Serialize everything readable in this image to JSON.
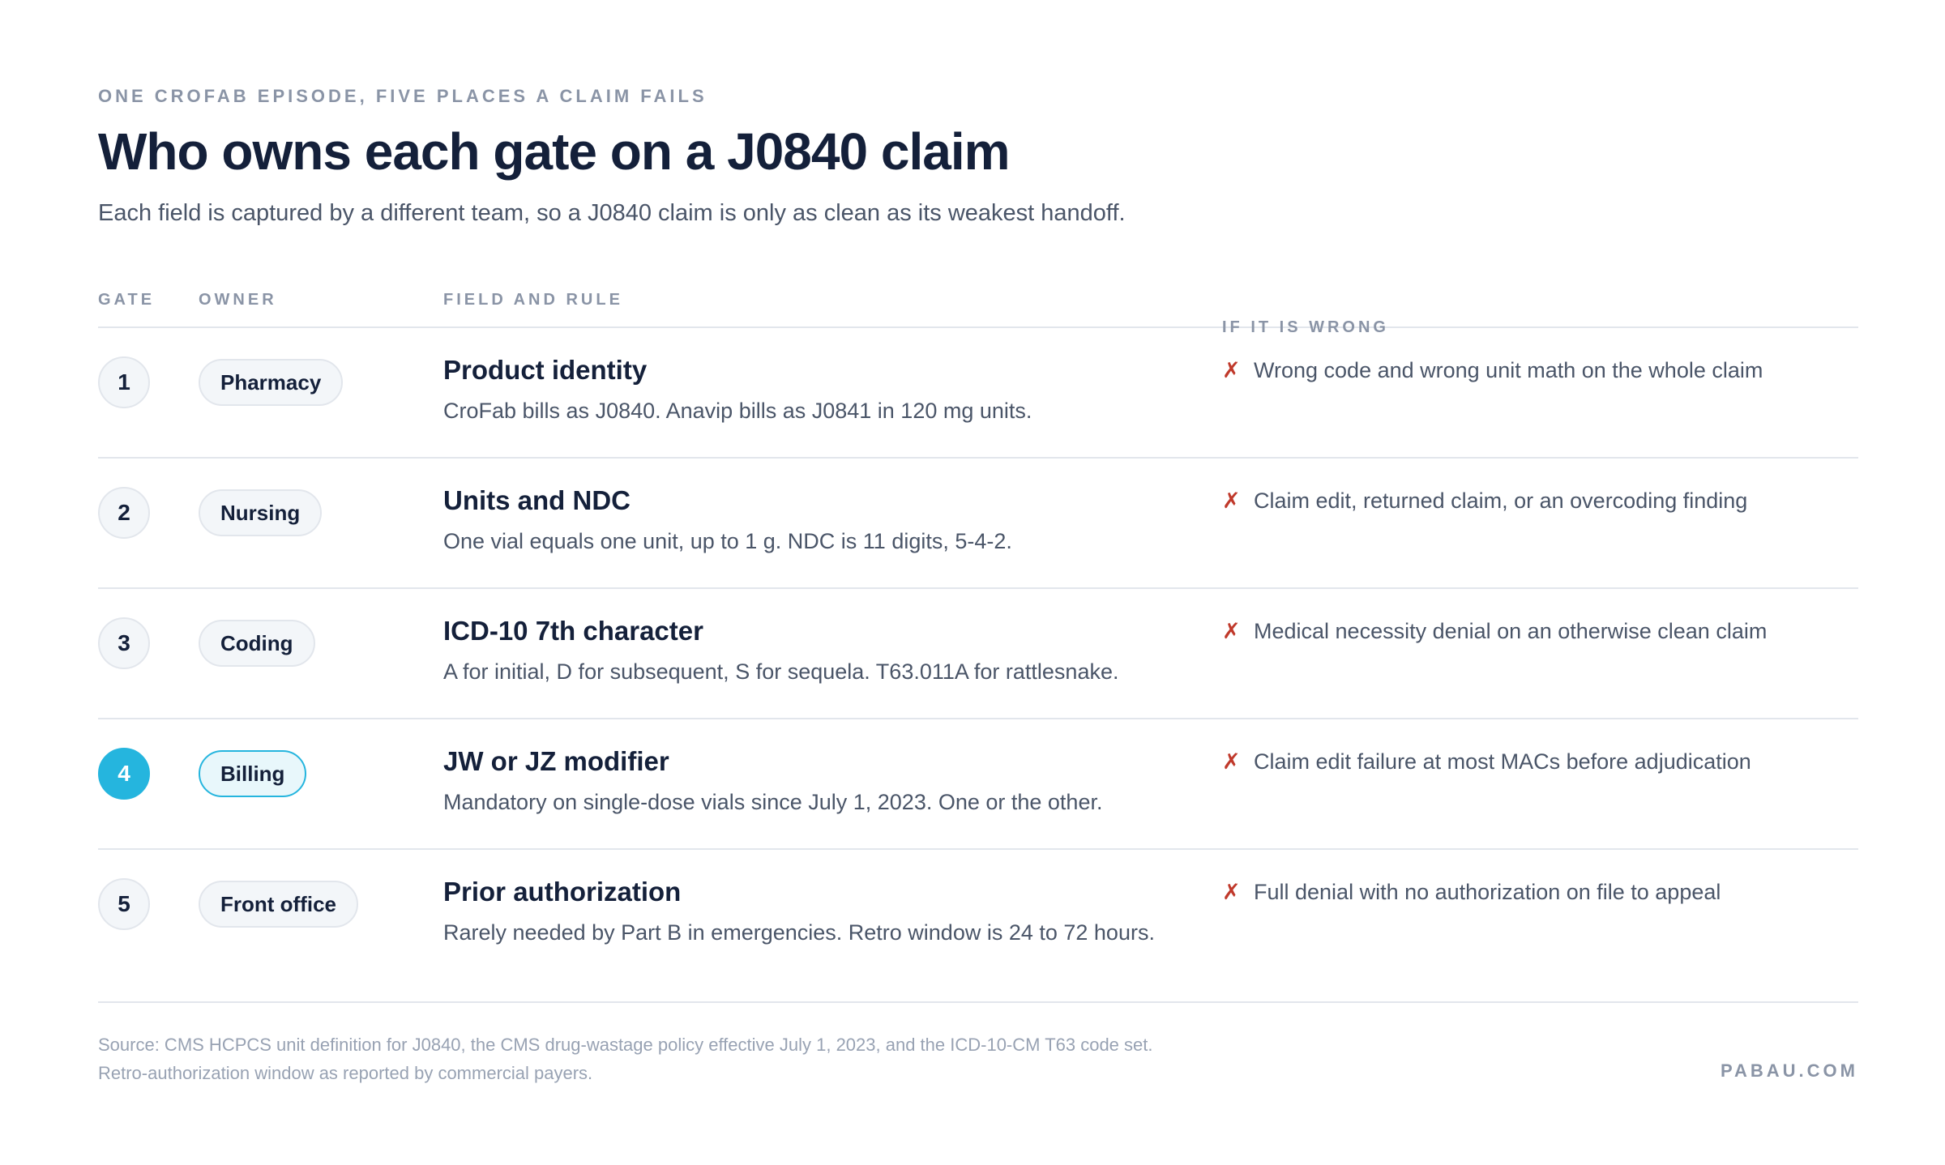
{
  "eyebrow": "ONE CROFAB EPISODE, FIVE PLACES A CLAIM FAILS",
  "title": "Who owns each gate on a J0840 claim",
  "subtitle": "Each field is captured by a different team, so a J0840 claim is only as clean as its weakest handoff.",
  "columns": {
    "gate": "GATE",
    "owner": "OWNER",
    "field": "FIELD AND RULE",
    "wrong": "IF IT IS WRONG"
  },
  "rows": [
    {
      "gate": "1",
      "owner": "Pharmacy",
      "field_title": "Product identity",
      "field_rule": "CroFab bills as J0840. Anavip bills as J0841 in 120 mg units.",
      "wrong": "Wrong code and wrong unit math on the whole claim"
    },
    {
      "gate": "2",
      "owner": "Nursing",
      "field_title": "Units and NDC",
      "field_rule": "One vial equals one unit, up to 1 g. NDC is 11 digits, 5-4-2.",
      "wrong": "Claim edit, returned claim, or an overcoding finding"
    },
    {
      "gate": "3",
      "owner": "Coding",
      "field_title": "ICD-10 7th character",
      "field_rule": "A for initial, D for subsequent, S for sequela. T63.011A for rattlesnake.",
      "wrong": "Medical necessity denial on an otherwise clean claim"
    },
    {
      "gate": "4",
      "owner": "Billing",
      "highlighted": true,
      "field_title": "JW or JZ modifier",
      "field_rule": "Mandatory on single-dose vials since July 1, 2023. One or the other.",
      "wrong": "Claim edit failure at most MACs before adjudication"
    },
    {
      "gate": "5",
      "owner": "Front office",
      "field_title": "Prior authorization",
      "field_rule": "Rarely needed by Part B in emergencies. Retro window is 24 to 72 hours.",
      "wrong": "Full denial with no authorization on file to appeal"
    }
  ],
  "wrong_icon": "cross-mark-icon",
  "wrong_icon_glyph": "✗",
  "source_lines": [
    "Source: CMS HCPCS unit definition for J0840, the CMS drug-wastage policy effective July 1, 2023, and the ICD-10-CM T63 code set.",
    "Retro-authorization window as reported by commercial payers."
  ],
  "brand": "PABAU.COM",
  "colors": {
    "accent": "#25b5de",
    "title": "#14203a",
    "body": "#4a5568",
    "muted": "#8a94a6",
    "cross": "#c0392b",
    "rule": "#e2e6ec"
  }
}
